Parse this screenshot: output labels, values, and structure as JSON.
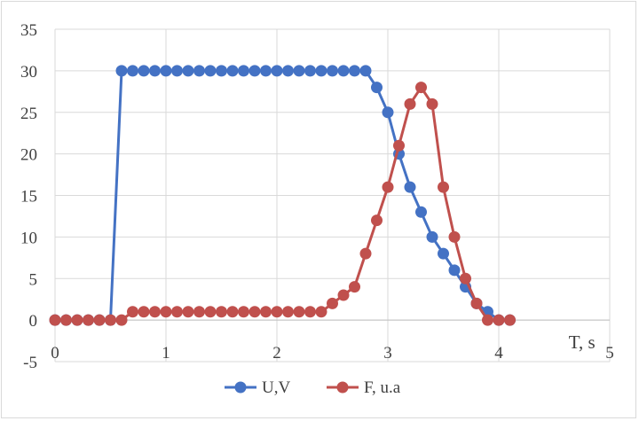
{
  "chart_data": {
    "type": "line",
    "title": "",
    "xlabel": "T, s",
    "ylabel": "",
    "xlim": [
      0,
      5
    ],
    "ylim": [
      -5,
      35
    ],
    "x_ticks": [
      0,
      1,
      2,
      3,
      4,
      5
    ],
    "y_ticks": [
      35,
      30,
      25,
      20,
      15,
      10,
      5,
      0,
      -5
    ],
    "grid": true,
    "legend_position": "bottom",
    "series": [
      {
        "name": "U,V",
        "color": "#4472c4",
        "x": [
          0,
          0.1,
          0.2,
          0.3,
          0.4,
          0.5,
          0.6,
          0.7,
          0.8,
          0.9,
          1.0,
          1.1,
          1.2,
          1.3,
          1.4,
          1.5,
          1.6,
          1.7,
          1.8,
          1.9,
          2.0,
          2.1,
          2.2,
          2.3,
          2.4,
          2.5,
          2.6,
          2.7,
          2.8,
          2.9,
          3.0,
          3.1,
          3.2,
          3.3,
          3.4,
          3.5,
          3.6,
          3.7,
          3.8,
          3.9,
          4.0,
          4.1
        ],
        "y": [
          0,
          0,
          0,
          0,
          0,
          0,
          30,
          30,
          30,
          30,
          30,
          30,
          30,
          30,
          30,
          30,
          30,
          30,
          30,
          30,
          30,
          30,
          30,
          30,
          30,
          30,
          30,
          30,
          30,
          28,
          25,
          20,
          16,
          13,
          10,
          8,
          6,
          4,
          2,
          1,
          0,
          0
        ]
      },
      {
        "name": "F, u.a",
        "color": "#c0504d",
        "x": [
          0,
          0.1,
          0.2,
          0.3,
          0.4,
          0.5,
          0.6,
          0.7,
          0.8,
          0.9,
          1.0,
          1.1,
          1.2,
          1.3,
          1.4,
          1.5,
          1.6,
          1.7,
          1.8,
          1.9,
          2.0,
          2.1,
          2.2,
          2.3,
          2.4,
          2.5,
          2.6,
          2.7,
          2.8,
          2.9,
          3.0,
          3.1,
          3.2,
          3.3,
          3.4,
          3.5,
          3.6,
          3.7,
          3.8,
          3.9,
          4.0,
          4.1
        ],
        "y": [
          0,
          0,
          0,
          0,
          0,
          0,
          0,
          1,
          1,
          1,
          1,
          1,
          1,
          1,
          1,
          1,
          1,
          1,
          1,
          1,
          1,
          1,
          1,
          1,
          1,
          2,
          3,
          4,
          8,
          12,
          16,
          21,
          26,
          28,
          26,
          16,
          10,
          5,
          2,
          0,
          0,
          0
        ]
      }
    ]
  }
}
